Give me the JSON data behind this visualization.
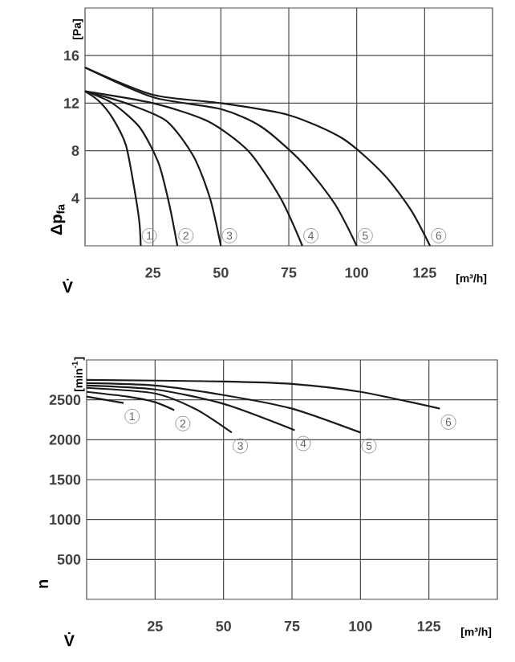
{
  "chart_data": [
    {
      "type": "line",
      "xlabel": "V̇",
      "ylabel": "Δp$_{fa}$",
      "annotations": [
        "[Pa]",
        "[m³/h]"
      ],
      "xlim": [
        0,
        150
      ],
      "ylim": [
        0,
        20
      ],
      "xticks": [
        25,
        50,
        75,
        100,
        125
      ],
      "yticks": [
        4,
        8,
        12,
        16
      ],
      "grid": true,
      "color": "#1a1a1a",
      "series": [
        {
          "name": "1",
          "x": [
            0,
            5,
            10,
            15,
            18,
            20,
            20.5
          ],
          "values": [
            13,
            12.2,
            10.8,
            8.5,
            5,
            2,
            0
          ]
        },
        {
          "name": "2",
          "x": [
            0,
            10,
            20,
            27,
            31,
            34
          ],
          "values": [
            13,
            12,
            10,
            7,
            3.5,
            0
          ]
        },
        {
          "name": "3",
          "x": [
            0,
            15,
            30,
            40,
            46,
            50
          ],
          "values": [
            13,
            12,
            10.5,
            7.5,
            4,
            0
          ]
        },
        {
          "name": "4",
          "x": [
            0,
            25,
            45,
            60,
            72,
            80
          ],
          "values": [
            13,
            12,
            10.5,
            8,
            4,
            0
          ]
        },
        {
          "name": "5",
          "x": [
            0,
            25,
            50,
            65,
            80,
            92,
            100
          ],
          "values": [
            15,
            12.5,
            11.5,
            10,
            7,
            3.5,
            0
          ]
        },
        {
          "name": "6",
          "x": [
            0,
            25,
            50,
            75,
            95,
            110,
            120,
            127
          ],
          "values": [
            15,
            12.7,
            12,
            11,
            9,
            6,
            3,
            0
          ]
        }
      ]
    },
    {
      "type": "line",
      "xlabel": "V̇",
      "ylabel": "n",
      "annotations": [
        "[min$^{-1}$]",
        "[m³/h]"
      ],
      "xlim": [
        0,
        150
      ],
      "ylim": [
        0,
        3000
      ],
      "xticks": [
        25,
        50,
        75,
        100,
        125
      ],
      "yticks": [
        500,
        1000,
        1500,
        2000,
        2500
      ],
      "grid": true,
      "color": "#1a1a1a",
      "series": [
        {
          "name": "1",
          "x": [
            0,
            13.5
          ],
          "values": [
            2540,
            2460
          ]
        },
        {
          "name": "2",
          "x": [
            0,
            15,
            25,
            32
          ],
          "values": [
            2600,
            2540,
            2470,
            2370
          ]
        },
        {
          "name": "3",
          "x": [
            0,
            25,
            40,
            53
          ],
          "values": [
            2650,
            2580,
            2380,
            2090
          ]
        },
        {
          "name": "4",
          "x": [
            0,
            25,
            50,
            76
          ],
          "values": [
            2680,
            2630,
            2450,
            2120
          ]
        },
        {
          "name": "5",
          "x": [
            0,
            25,
            50,
            75,
            100
          ],
          "values": [
            2710,
            2680,
            2560,
            2390,
            2090
          ]
        },
        {
          "name": "6",
          "x": [
            0,
            50,
            75,
            100,
            129
          ],
          "values": [
            2750,
            2730,
            2700,
            2600,
            2390
          ]
        }
      ]
    }
  ]
}
